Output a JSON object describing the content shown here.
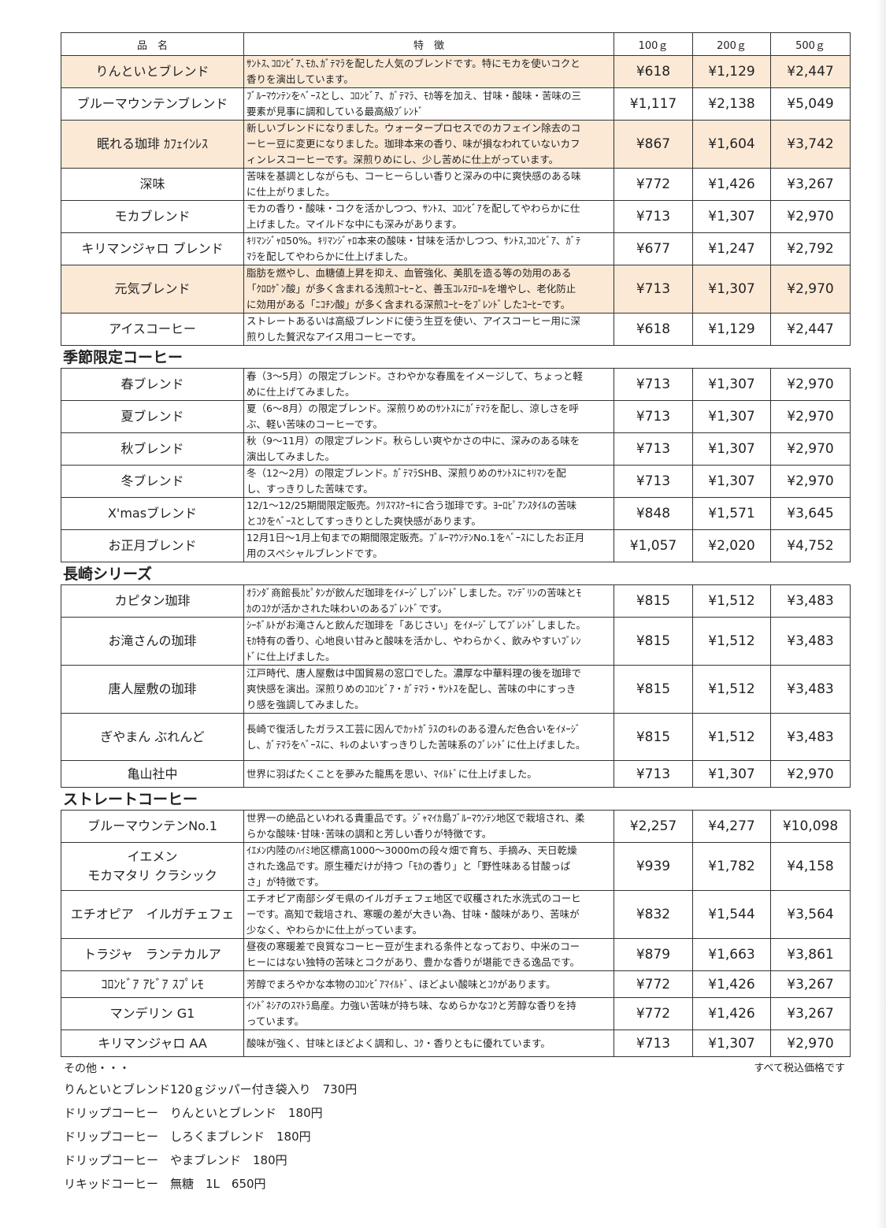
{
  "header": {
    "name": "品　名",
    "desc": "特　徴",
    "p100": "100ｇ",
    "p200": "200ｇ",
    "p500": "500ｇ"
  },
  "highlight_color": "#fbe9d6",
  "sections": [
    {
      "title": "",
      "rows": [
        {
          "name": [
            "りんといとブレンド"
          ],
          "desc": [
            "ｻﾝﾄｽ､ｺﾛﾝﾋﾞｱ､ﾓｶ､ｶﾞﾃﾏﾗを配した人気のブレンドです。特にモカを使いコクと",
            "香りを演出しています。"
          ],
          "p100": "¥618",
          "p200": "¥1,129",
          "p500": "¥2,447",
          "highlight": true
        },
        {
          "name": [
            "ブルーマウンテンブレンド"
          ],
          "desc": [
            "ﾌﾞﾙｰﾏｳﾝﾃﾝをﾍﾞｰｽとし、ｺﾛﾝﾋﾞｱ、ｶﾞﾃﾏﾗ、ﾓｶ等を加え、甘味・酸味・苦味の三",
            "要素が見事に調和している最高級ﾌﾞﾚﾝﾄﾞ"
          ],
          "p100": "¥1,117",
          "p200": "¥2,138",
          "p500": "¥5,049"
        },
        {
          "name": [
            "眠れる珈琲 ｶﾌｪｲﾝﾚｽ"
          ],
          "desc": [
            "新しいブレンドになりました。ウォータープロセスでのカフェイン除去のコ",
            "ーヒー豆に変更になりました。珈琲本来の香り、味が損なわれていないカフ",
            "ィンレスコーヒーです。深煎りめにし、少し苦めに仕上がっています。"
          ],
          "p100": "¥867",
          "p200": "¥1,604",
          "p500": "¥3,742",
          "highlight": true
        },
        {
          "name": [
            "深味"
          ],
          "desc": [
            "苦味を基調としながらも、コーヒーらしい香りと深みの中に爽快感のある味",
            "に仕上がりました。"
          ],
          "p100": "¥772",
          "p200": "¥1,426",
          "p500": "¥3,267"
        },
        {
          "name": [
            "モカブレンド"
          ],
          "desc": [
            "モカの香り・酸味・コクを活かしつつ、ｻﾝﾄｽ、ｺﾛﾝﾋﾞｱを配してやわらかに仕",
            "上げました。マイルドな中にも深みがあります。"
          ],
          "p100": "¥713",
          "p200": "¥1,307",
          "p500": "¥2,970"
        },
        {
          "name": [
            "キリマンジャロ ブレンド"
          ],
          "desc": [
            "ｷﾘﾏﾝｼﾞｬﾛ50%。ｷﾘﾏﾝｼﾞｬﾛ本来の酸味・甘味を活かしつつ、ｻﾝﾄｽ,ｺﾛﾝﾋﾞｱ、ｶﾞﾃ",
            "ﾏﾗを配してやわらかに仕上げました。"
          ],
          "p100": "¥677",
          "p200": "¥1,247",
          "p500": "¥2,792"
        },
        {
          "name": [
            "元気ブレンド"
          ],
          "desc": [
            "脂肪を燃やし、血糖値上昇を抑え、血管強化、美肌を造る等の効用のある",
            "「ｸﾛﾛｹﾞﾝ酸」が多く含まれる浅煎ｺｰﾋｰと、善玉ｺﾚｽﾃﾛｰﾙを増やし、老化防止",
            "に効用がある「ﾆｺﾁﾝ酸」が多く含まれる深煎ｺｰﾋｰをﾌﾞﾚﾝﾄﾞしたｺｰﾋｰです。"
          ],
          "p100": "¥713",
          "p200": "¥1,307",
          "p500": "¥2,970",
          "highlight": true
        },
        {
          "name": [
            "アイスコーヒー"
          ],
          "desc": [
            "ストレートあるいは高級ブレンドに使う生豆を使い、アイスコーヒー用に深",
            "煎りした贅沢なアイス用コーヒーです。"
          ],
          "p100": "¥618",
          "p200": "¥1,129",
          "p500": "¥2,447"
        }
      ]
    },
    {
      "title": "季節限定コーヒー",
      "rows": [
        {
          "name": [
            "春ブレンド"
          ],
          "desc": [
            "春（3～5月）の限定ブレンド。さわやかな春風をイメージして、ちょっと軽",
            "めに仕上げてみました。"
          ],
          "p100": "¥713",
          "p200": "¥1,307",
          "p500": "¥2,970"
        },
        {
          "name": [
            "夏ブレンド"
          ],
          "desc": [
            "夏（6～8月）の限定ブレンド。深煎りめのｻﾝﾄｽにｶﾞﾃﾏﾗを配し、涼しさを呼",
            "ぶ、軽い苦味のコーヒーです。"
          ],
          "p100": "¥713",
          "p200": "¥1,307",
          "p500": "¥2,970"
        },
        {
          "name": [
            "秋ブレンド"
          ],
          "desc": [
            "秋（9～11月）の限定ブレンド。秋らしい爽やかさの中に、深みのある味を",
            "演出してみました。"
          ],
          "p100": "¥713",
          "p200": "¥1,307",
          "p500": "¥2,970"
        },
        {
          "name": [
            "冬ブレンド"
          ],
          "desc": [
            "冬（12～2月）の限定ブレンド。ｶﾞﾃﾏﾗSHB、深煎りめのｻﾝﾄｽにｷﾘﾏﾝを配",
            "し、すっきりした苦味です。"
          ],
          "p100": "¥713",
          "p200": "¥1,307",
          "p500": "¥2,970"
        },
        {
          "name": [
            "X'masブレンド"
          ],
          "desc": [
            "12/1～12/25期間限定販売。ｸﾘｽﾏｽｹｰｷに合う珈琲です。ﾖｰﾛﾋﾟｱﾝｽﾀｲﾙの苦味",
            "とｺｸをﾍﾞｰｽとしてすっきりとした爽快感があります。"
          ],
          "p100": "¥848",
          "p200": "¥1,571",
          "p500": "¥3,645"
        },
        {
          "name": [
            "お正月ブレンド"
          ],
          "desc": [
            "12月1日～1月上旬までの期間限定販売。ﾌﾞﾙｰﾏｳﾝﾃﾝNo.1をﾍﾞｰｽにしたお正月",
            "用のスペシャルブレンドです。"
          ],
          "p100": "¥1,057",
          "p200": "¥2,020",
          "p500": "¥4,752"
        }
      ]
    },
    {
      "title": "長崎シリーズ",
      "rows": [
        {
          "name": [
            "カピタン珈琲"
          ],
          "desc": [
            "ｵﾗﾝﾀﾞ商館長ｶﾋﾟﾀﾝが飲んだ珈琲をｲﾒｰｼﾞしﾌﾞﾚﾝﾄﾞしました。ﾏﾝﾃﾞﾘﾝの苦味とﾓ",
            "ｶのｺｸが活かされた味わいのあるﾌﾞﾚﾝﾄﾞです。"
          ],
          "p100": "¥815",
          "p200": "¥1,512",
          "p500": "¥3,483"
        },
        {
          "name": [
            "お滝さんの珈琲"
          ],
          "desc": [
            "ｼｰﾎﾞﾙﾄがお滝さんと飲んだ珈琲を「あじさい」をｲﾒｰｼﾞしてﾌﾞﾚﾝﾄﾞしました。",
            "ﾓｶ特有の香り、心地良い甘みと酸味を活かし、やわらかく、飲みやすいﾌﾞﾚﾝ",
            "ﾄﾞに仕上げました。"
          ],
          "p100": "¥815",
          "p200": "¥1,512",
          "p500": "¥3,483"
        },
        {
          "name": [
            "唐人屋敷の珈琲"
          ],
          "desc": [
            "江戸時代、唐人屋敷は中国貿易の窓口でした。濃厚な中華料理の後を珈琲で",
            "爽快感を演出。深煎りめのｺﾛﾝﾋﾞｱ・ｶﾞﾃﾏﾗ・ｻﾝﾄｽを配し、苦味の中にすっき",
            "り感を強調してみました。"
          ],
          "p100": "¥815",
          "p200": "¥1,512",
          "p500": "¥3,483"
        },
        {
          "name": [
            "ぎやまん ぶれんど"
          ],
          "desc": [
            "長崎で復活したガラス工芸に因んでｶｯﾄｶﾞﾗｽのｷﾚのある澄んだ色合いをｲﾒｰｼﾞ",
            "し、ｶﾞﾃﾏﾗをﾍﾞｰｽに、ｷﾚのよいすっきりした苦味系のﾌﾞﾚﾝﾄﾞに仕上げました。"
          ],
          "p100": "¥815",
          "p200": "¥1,512",
          "p500": "¥3,483",
          "tall": true
        },
        {
          "name": [
            "亀山社中"
          ],
          "desc": [
            "世界に羽ばたくことを夢みた龍馬を思い、ﾏｲﾙﾄﾞに仕上げました。"
          ],
          "p100": "¥713",
          "p200": "¥1,307",
          "p500": "¥2,970"
        }
      ]
    },
    {
      "title": "ストレートコーヒー",
      "rows": [
        {
          "name": [
            "ブルーマウンテンNo.1"
          ],
          "desc": [
            "世界一の絶品といわれる貴重品です。ｼﾞｬﾏｲｶ島ﾌﾞﾙｰﾏｳﾝﾃﾝ地区で栽培され、柔",
            "らかな酸味･甘味･苦味の調和と芳しい香りが特徴です。"
          ],
          "p100": "¥2,257",
          "p200": "¥4,277",
          "p500": "¥10,098"
        },
        {
          "name": [
            "イエメン",
            "モカマタリ クラシック"
          ],
          "desc": [
            "ｲｴﾒﾝ内陸のﾊｲﾐ地区標高1000～3000mの段々畑で育ち、手摘み、天日乾燥",
            "された逸品です。原生種だけが持つ「ﾓｶの香り」と「野性味ある甘酸っぱ",
            "さ」が特徴です。"
          ],
          "p100": "¥939",
          "p200": "¥1,782",
          "p500": "¥4,158"
        },
        {
          "name": [
            "エチオピア　イルガチェフェ"
          ],
          "desc": [
            "エチオピア南部シダモ県のイルガチェフェ地区で収穫された水洗式のコーヒ",
            "ーです。高知で栽培され、寒暖の差が大きい為、甘味・酸味があり、苦味が",
            "少なく、やわらかに仕上がっています。"
          ],
          "p100": "¥832",
          "p200": "¥1,544",
          "p500": "¥3,564"
        },
        {
          "name": [
            "トラジャ　ランテカルア"
          ],
          "desc": [
            "昼夜の寒暖差で良質なコーヒー豆が生まれる条件となっており、中米のコー",
            "ヒーにはない独特の苦味とコクがあり、豊かな香りが堪能できる逸品です。"
          ],
          "p100": "¥879",
          "p200": "¥1,663",
          "p500": "¥3,861"
        },
        {
          "name": [
            "ｺﾛﾝﾋﾞｱ ｱﾋﾞｱ ｽﾌﾟﾚﾓ"
          ],
          "desc": [
            "芳醇でまろやかな本物のｺﾛﾝﾋﾞｱﾏｲﾙﾄﾞ、ほどよい酸味とｺｸがあります。"
          ],
          "p100": "¥772",
          "p200": "¥1,426",
          "p500": "¥3,267"
        },
        {
          "name": [
            "マンデリン G1"
          ],
          "desc": [
            "ｲﾝﾄﾞﾈｼｱのｽﾏﾄﾗ島産。力強い苦味が持ち味、なめらかなｺｸと芳醇な香りを持",
            "っています。"
          ],
          "p100": "¥772",
          "p200": "¥1,426",
          "p500": "¥3,267"
        },
        {
          "name": [
            "キリマンジャロ AA"
          ],
          "desc": [
            "酸味が強く、甘味とほどよく調和し、ｺｸ・香りともに優れています。"
          ],
          "p100": "¥713",
          "p200": "¥1,307",
          "p500": "¥2,970"
        }
      ]
    }
  ],
  "footer": {
    "other_label": "その他・・・",
    "tax_note": "すべて税込価格です",
    "items": [
      "りんといとブレンド120ｇジッパー付き袋入り　730円",
      "ドリップコーヒー　りんといとブレンド　180円",
      "ドリップコーヒー　しろくまブレンド　180円",
      "ドリップコーヒー　やまブレンド　180円",
      "リキッドコーヒー　無糖　1L　650円"
    ]
  }
}
